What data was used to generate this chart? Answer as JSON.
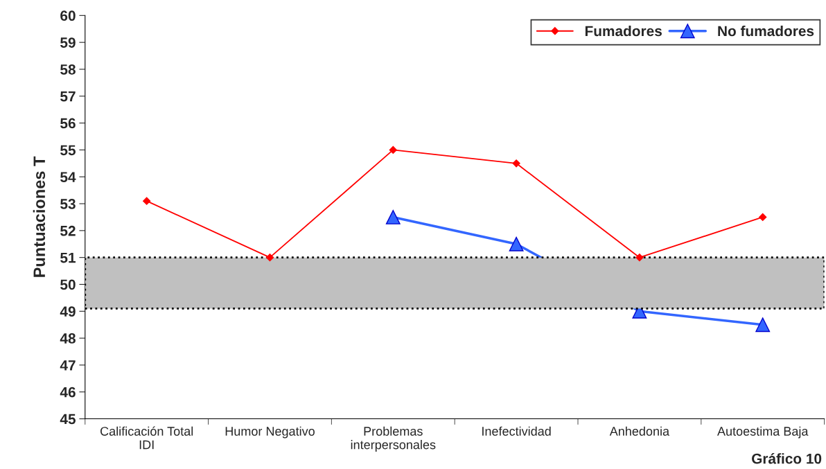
{
  "chart_data": {
    "type": "line",
    "ylabel": "Puntuaciones T",
    "categories": [
      "Calificación Total\nIDI",
      "Humor Negativo",
      "Problemas\ninterpersonales",
      "Inefectividad",
      "Anhedonia",
      "Autoestima Baja"
    ],
    "series": [
      {
        "name": "Fumadores",
        "color": "#ff0000",
        "marker": "diamond",
        "values": [
          53.1,
          51,
          55,
          54.5,
          51,
          52.5
        ]
      },
      {
        "name": "No fumadores",
        "color": "#3366ff",
        "marker": "triangle",
        "values": [
          null,
          null,
          52.5,
          51.5,
          49,
          48.5
        ]
      }
    ],
    "ylim": [
      45,
      60
    ],
    "yticks": [
      45,
      46,
      47,
      48,
      49,
      50,
      51,
      52,
      53,
      54,
      55,
      56,
      57,
      58,
      59,
      60
    ],
    "bands": [
      {
        "axis": "y",
        "from": 49.1,
        "to": 51,
        "color": "#c0c0c0"
      }
    ],
    "annotations": [
      "Gráfico 10"
    ],
    "grid": false,
    "legend": "top right"
  }
}
